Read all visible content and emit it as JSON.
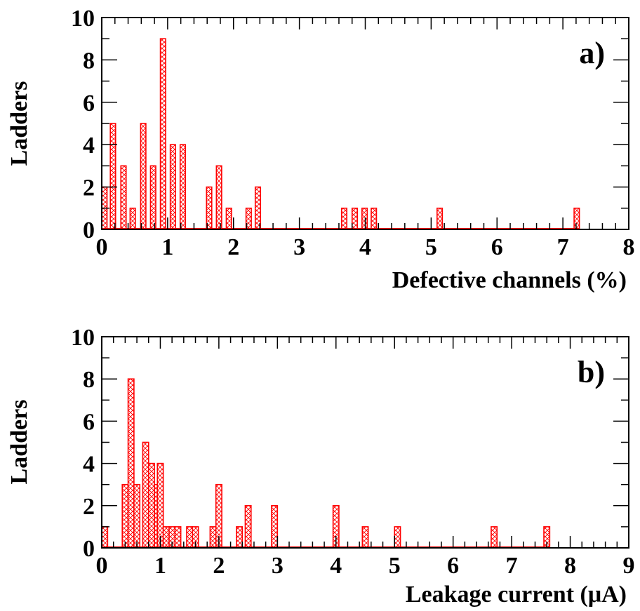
{
  "chart_data": [
    {
      "type": "bar",
      "label": "a)",
      "xlabel": "Defective channels (%)",
      "ylabel": "Ladders",
      "xlim": [
        0,
        8
      ],
      "ylim": [
        0,
        10
      ],
      "x_ticks": [
        "0",
        "1",
        "2",
        "3",
        "4",
        "5",
        "6",
        "7",
        "8"
      ],
      "y_ticks": [
        "0",
        "2",
        "4",
        "6",
        "8",
        "10"
      ],
      "bin_width": 0.08,
      "bar_color": "#ff0000",
      "bins": [
        {
          "x": 0.0,
          "y": 2
        },
        {
          "x": 0.13,
          "y": 5
        },
        {
          "x": 0.29,
          "y": 3
        },
        {
          "x": 0.43,
          "y": 1
        },
        {
          "x": 0.59,
          "y": 5
        },
        {
          "x": 0.74,
          "y": 3
        },
        {
          "x": 0.89,
          "y": 9
        },
        {
          "x": 1.04,
          "y": 4
        },
        {
          "x": 1.19,
          "y": 4
        },
        {
          "x": 1.59,
          "y": 2
        },
        {
          "x": 1.74,
          "y": 3
        },
        {
          "x": 1.89,
          "y": 1
        },
        {
          "x": 2.19,
          "y": 1
        },
        {
          "x": 2.33,
          "y": 2
        },
        {
          "x": 3.64,
          "y": 1
        },
        {
          "x": 3.8,
          "y": 1
        },
        {
          "x": 3.95,
          "y": 1
        },
        {
          "x": 4.09,
          "y": 1
        },
        {
          "x": 5.09,
          "y": 1
        },
        {
          "x": 7.17,
          "y": 1
        }
      ]
    },
    {
      "type": "bar",
      "label": "b)",
      "xlabel": "Leakage current (μA)",
      "ylabel": "Ladders",
      "xlim": [
        0,
        9
      ],
      "ylim": [
        0,
        10
      ],
      "x_ticks": [
        "0",
        "1",
        "2",
        "3",
        "4",
        "5",
        "6",
        "7",
        "8",
        "9"
      ],
      "y_ticks": [
        "0",
        "2",
        "4",
        "6",
        "8",
        "10"
      ],
      "bin_width": 0.1,
      "bar_color": "#ff0000",
      "bins": [
        {
          "x": 0.0,
          "y": 1
        },
        {
          "x": 0.35,
          "y": 3
        },
        {
          "x": 0.45,
          "y": 8
        },
        {
          "x": 0.55,
          "y": 3
        },
        {
          "x": 0.7,
          "y": 5
        },
        {
          "x": 0.8,
          "y": 4
        },
        {
          "x": 0.9,
          "y": 3
        },
        {
          "x": 0.95,
          "y": 4
        },
        {
          "x": 1.05,
          "y": 1
        },
        {
          "x": 1.15,
          "y": 1
        },
        {
          "x": 1.25,
          "y": 1
        },
        {
          "x": 1.45,
          "y": 1
        },
        {
          "x": 1.55,
          "y": 1
        },
        {
          "x": 1.85,
          "y": 1
        },
        {
          "x": 1.95,
          "y": 3
        },
        {
          "x": 2.3,
          "y": 1
        },
        {
          "x": 2.45,
          "y": 2
        },
        {
          "x": 2.9,
          "y": 2
        },
        {
          "x": 3.95,
          "y": 2
        },
        {
          "x": 4.45,
          "y": 1
        },
        {
          "x": 5.0,
          "y": 1
        },
        {
          "x": 6.65,
          "y": 1
        },
        {
          "x": 7.55,
          "y": 1
        }
      ]
    }
  ]
}
